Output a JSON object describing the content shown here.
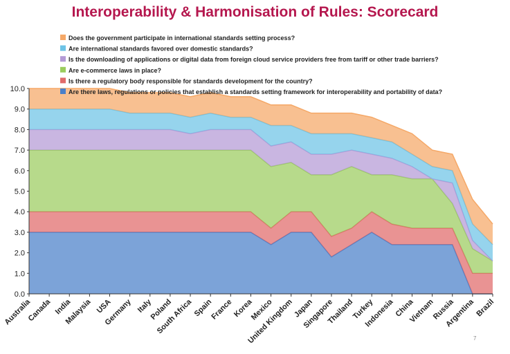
{
  "title": "Interoperability & Harmonisation of Rules: Scorecard",
  "page_number": "7",
  "chart_data": {
    "type": "area",
    "stacked": true,
    "title": "Interoperability & Harmonisation of Rules: Scorecard",
    "xlabel": "",
    "ylabel": "",
    "ylim": [
      0,
      10
    ],
    "yticks": [
      "0.0",
      "1.0",
      "2.0",
      "3.0",
      "4.0",
      "5.0",
      "6.0",
      "7.0",
      "8.0",
      "9.0",
      "10.0"
    ],
    "grid": false,
    "legend_position": "top",
    "categories": [
      "Australia",
      "Canada",
      "India",
      "Malaysia",
      "USA",
      "Germany",
      "Italy",
      "Poland",
      "South Africa",
      "Spain",
      "France",
      "Korea",
      "Mexico",
      "United Kingdom",
      "Japan",
      "Singapore",
      "Thailand",
      "Turkey",
      "Indonesia",
      "China",
      "Vietnam",
      "Russia",
      "Argentina",
      "Brazil"
    ],
    "series": [
      {
        "name": "Are there laws, regulations or policies that establish a standards setting framework for interoperability and portability of data?",
        "color": "#4a7fc9",
        "values": [
          3.0,
          3.0,
          3.0,
          3.0,
          3.0,
          3.0,
          3.0,
          3.0,
          3.0,
          3.0,
          3.0,
          3.0,
          2.4,
          3.0,
          3.0,
          1.8,
          2.4,
          3.0,
          2.4,
          2.4,
          2.4,
          2.4,
          0.0,
          0.0
        ]
      },
      {
        "name": "Is there a regulatory body responsible for standards development for the country?",
        "color": "#e06a6a",
        "values": [
          1.0,
          1.0,
          1.0,
          1.0,
          1.0,
          1.0,
          1.0,
          1.0,
          1.0,
          1.0,
          1.0,
          1.0,
          0.8,
          1.0,
          1.0,
          1.0,
          0.8,
          1.0,
          1.0,
          0.8,
          0.8,
          0.8,
          1.0,
          1.0
        ]
      },
      {
        "name": "Are e-commerce laws in place?",
        "color": "#9bcc5e",
        "values": [
          3.0,
          3.0,
          3.0,
          3.0,
          3.0,
          3.0,
          3.0,
          3.0,
          3.0,
          3.0,
          3.0,
          3.0,
          3.0,
          2.4,
          1.8,
          3.0,
          3.0,
          1.8,
          2.4,
          2.4,
          2.4,
          1.2,
          1.2,
          0.6
        ]
      },
      {
        "name": "Is the downloading of applications or digital data from foreign cloud service providers free from tariff or other trade barriers?",
        "color": "#b49ad6",
        "values": [
          1.0,
          1.0,
          1.0,
          1.0,
          1.0,
          1.0,
          1.0,
          1.0,
          0.8,
          1.0,
          1.0,
          1.0,
          1.0,
          1.0,
          1.0,
          1.0,
          0.8,
          1.0,
          0.8,
          0.6,
          0.0,
          1.0,
          0.4,
          0.0
        ]
      },
      {
        "name": "Are international standards favored over domestic standards?",
        "color": "#6dc3e6",
        "values": [
          1.0,
          1.0,
          1.0,
          1.0,
          1.0,
          0.8,
          0.8,
          0.8,
          0.8,
          0.8,
          0.6,
          0.6,
          1.0,
          0.8,
          1.0,
          1.0,
          0.8,
          0.8,
          0.8,
          0.6,
          0.6,
          0.6,
          0.8,
          0.8
        ]
      },
      {
        "name": "Does the government participate in international standards setting process?",
        "color": "#f5a867",
        "values": [
          1.0,
          1.0,
          1.0,
          1.0,
          1.0,
          1.0,
          1.0,
          1.0,
          1.0,
          1.0,
          1.0,
          1.0,
          1.0,
          1.0,
          1.0,
          1.0,
          1.0,
          1.0,
          0.8,
          1.0,
          0.8,
          0.8,
          1.2,
          1.0
        ]
      }
    ]
  }
}
